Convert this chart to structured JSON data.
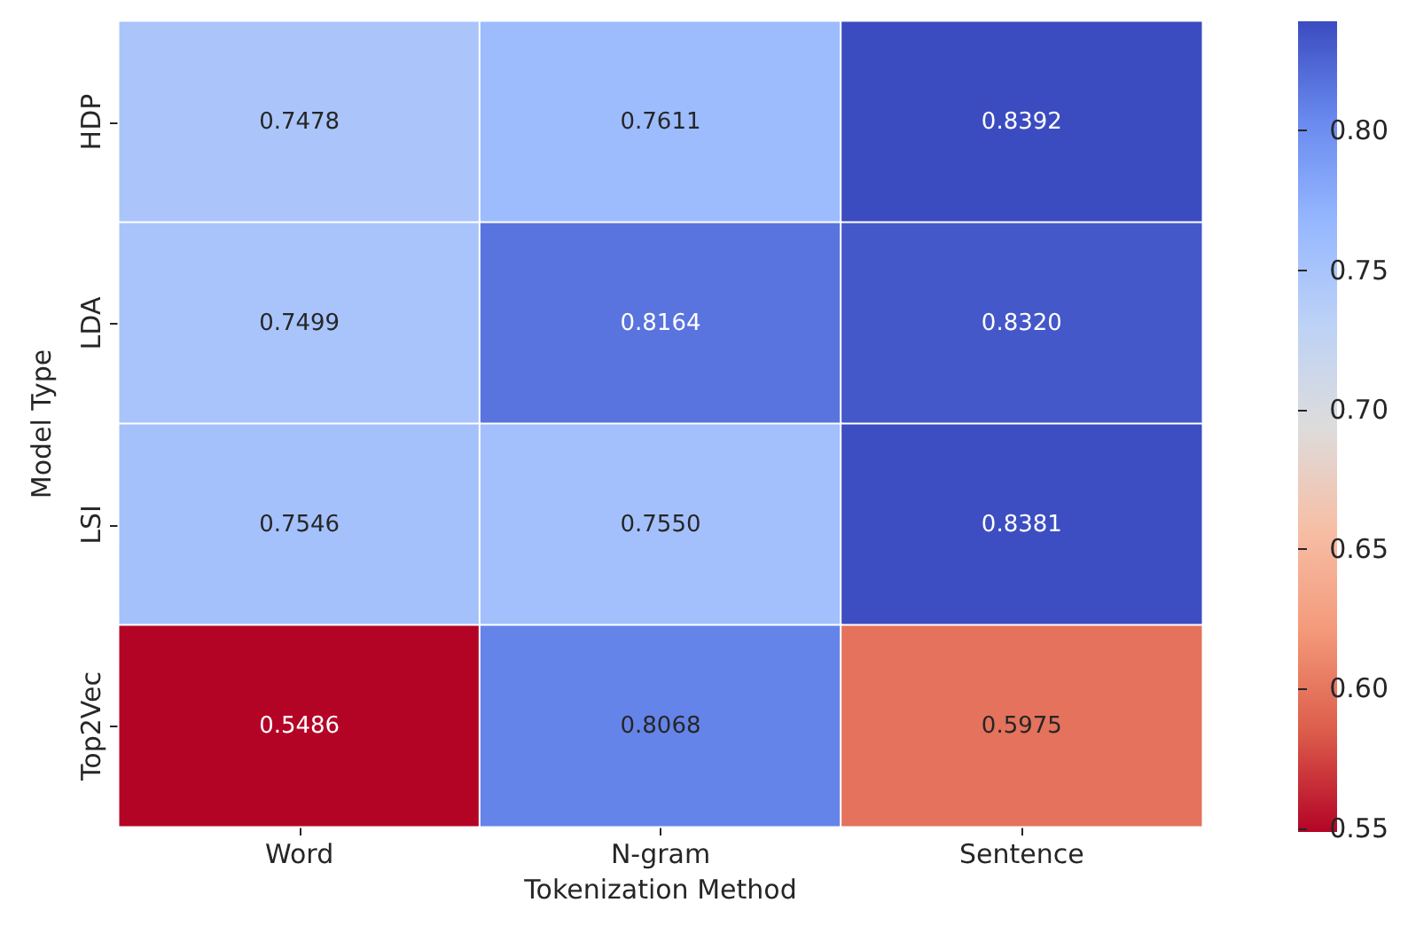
{
  "chart_data": {
    "type": "heatmap",
    "xlabel": "Tokenization Method",
    "ylabel": "Model Type",
    "categories": [
      "Word",
      "N-gram",
      "Sentence"
    ],
    "y_categories": [
      "HDP",
      "LDA",
      "LSI",
      "Top2Vec"
    ],
    "cells": [
      [
        0.7478,
        0.7611,
        0.8392
      ],
      [
        0.7499,
        0.8164,
        0.832
      ],
      [
        0.7546,
        0.755,
        0.8381
      ],
      [
        0.5486,
        0.8068,
        0.5975
      ]
    ],
    "cell_labels": [
      [
        "0.7478",
        "0.7611",
        "0.8392"
      ],
      [
        "0.7499",
        "0.8164",
        "0.8320"
      ],
      [
        "0.7546",
        "0.7550",
        "0.8381"
      ],
      [
        "0.5486",
        "0.8068",
        "0.5975"
      ]
    ],
    "clim": [
      0.5486,
      0.8392
    ],
    "cticks": [
      0.55,
      {
        "value": 0.6,
        "label": "0.60"
      },
      0.65,
      {
        "value": 0.7,
        "label": "0.70"
      },
      0.75,
      {
        "value": 0.8,
        "label": "0.80"
      }
    ]
  }
}
